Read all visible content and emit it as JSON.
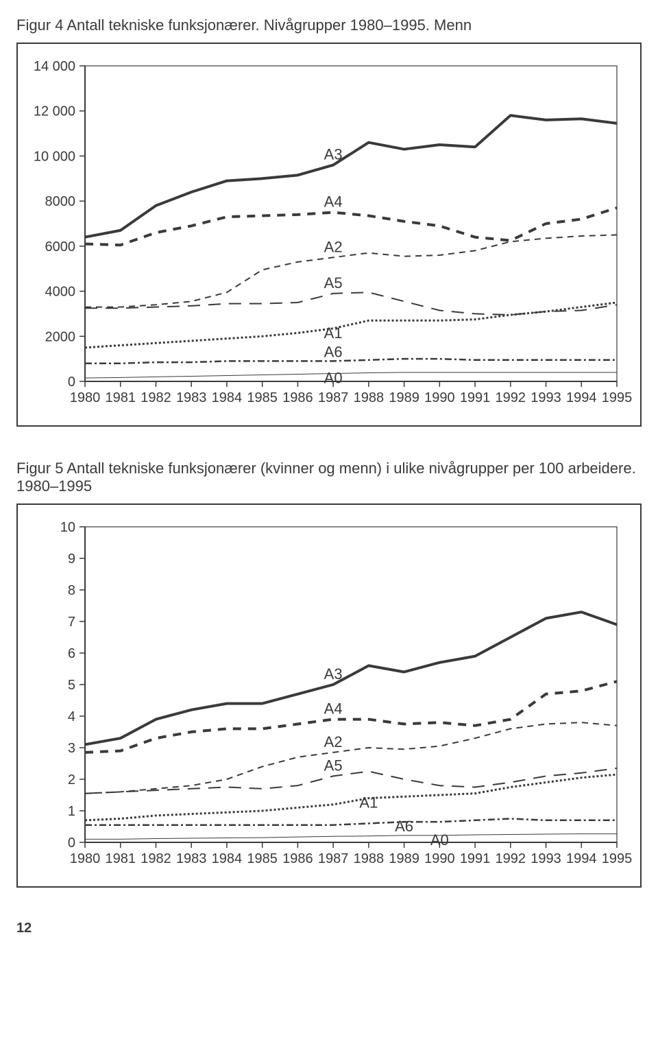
{
  "page_number": "12",
  "figure4": {
    "title": "Figur 4 Antall tekniske funksjonærer. Nivågrupper 1980–1995. Menn",
    "type": "line",
    "x_categories": [
      "1980",
      "1981",
      "1982",
      "1983",
      "1984",
      "1985",
      "1986",
      "1987",
      "1988",
      "1989",
      "1990",
      "1991",
      "1992",
      "1993",
      "1994",
      "1995"
    ],
    "y_ticks": [
      "0",
      "2000",
      "4000",
      "6000",
      "8000",
      "10 000",
      "12 000",
      "14 000"
    ],
    "ylim": [
      0,
      14000
    ],
    "background_color": "#ffffff",
    "axis_color": "#3a3a3a",
    "tick_fontsize": 20,
    "label_fontsize": 22,
    "line_width_heavy": 4,
    "line_width_light": 1.5,
    "series": {
      "A3": {
        "label": "A3",
        "color": "#3a3a3a",
        "dash": "none",
        "width": 4,
        "values": [
          6400,
          6700,
          7800,
          8400,
          8900,
          9000,
          9150,
          9600,
          10600,
          10300,
          10500,
          10400,
          11800,
          11600,
          11650,
          11450
        ]
      },
      "A4": {
        "label": "A4",
        "color": "#3a3a3a",
        "dash": "12 10",
        "width": 4,
        "values": [
          6100,
          6050,
          6600,
          6900,
          7300,
          7350,
          7400,
          7500,
          7350,
          7100,
          6900,
          6400,
          6250,
          7000,
          7200,
          7700
        ]
      },
      "A2": {
        "label": "A2",
        "color": "#3a3a3a",
        "dash": "9 7",
        "width": 2,
        "values": [
          3300,
          3300,
          3400,
          3550,
          3950,
          4950,
          5300,
          5500,
          5700,
          5550,
          5600,
          5800,
          6200,
          6350,
          6450,
          6500
        ]
      },
      "A5": {
        "label": "A5",
        "color": "#3a3a3a",
        "dash": "18 12",
        "width": 2,
        "values": [
          3250,
          3250,
          3300,
          3350,
          3450,
          3450,
          3500,
          3900,
          3950,
          3550,
          3150,
          3000,
          2950,
          3100,
          3150,
          3400
        ]
      },
      "A1": {
        "label": "A1",
        "color": "#3a3a3a",
        "dash": "3 3",
        "width": 3,
        "values": [
          1500,
          1600,
          1700,
          1800,
          1900,
          2000,
          2150,
          2350,
          2700,
          2700,
          2700,
          2750,
          2950,
          3100,
          3300,
          3500
        ]
      },
      "A6": {
        "label": "A6",
        "color": "#3a3a3a",
        "dash": "10 4 3 4",
        "width": 2.5,
        "values": [
          800,
          800,
          850,
          850,
          900,
          900,
          900,
          900,
          950,
          1000,
          1000,
          950,
          950,
          950,
          950,
          950
        ]
      },
      "A0": {
        "label": "A0",
        "color": "#3a3a3a",
        "dash": "none",
        "width": 1,
        "values": [
          150,
          170,
          200,
          230,
          260,
          290,
          320,
          350,
          380,
          400,
          400,
          400,
          400,
          400,
          400,
          400
        ]
      }
    },
    "inline_labels": [
      {
        "key": "A3",
        "x": 7,
        "dy": -8
      },
      {
        "key": "A4",
        "x": 7,
        "dy": -8
      },
      {
        "key": "A2",
        "x": 7,
        "dy": -8
      },
      {
        "key": "A5",
        "x": 7,
        "dy": -8
      },
      {
        "key": "A1",
        "x": 7,
        "dy": 14
      },
      {
        "key": "A6",
        "x": 7,
        "dy": -6
      },
      {
        "key": "A0",
        "x": 7,
        "dy": 14
      }
    ]
  },
  "figure5": {
    "title": "Figur 5 Antall tekniske funksjonærer (kvinner og menn) i ulike nivågrupper per 100 arbeidere. 1980–1995",
    "type": "line",
    "x_categories": [
      "1980",
      "1981",
      "1982",
      "1983",
      "1984",
      "1985",
      "1986",
      "1987",
      "1988",
      "1989",
      "1990",
      "1991",
      "1992",
      "1993",
      "1994",
      "1995"
    ],
    "y_ticks": [
      "0",
      "1",
      "2",
      "3",
      "4",
      "5",
      "6",
      "7",
      "8",
      "9",
      "10"
    ],
    "ylim": [
      0,
      10
    ],
    "background_color": "#ffffff",
    "axis_color": "#3a3a3a",
    "tick_fontsize": 20,
    "label_fontsize": 22,
    "line_width_heavy": 4,
    "line_width_light": 1.5,
    "series": {
      "A3": {
        "label": "A3",
        "color": "#3a3a3a",
        "dash": "none",
        "width": 4,
        "values": [
          3.1,
          3.3,
          3.9,
          4.2,
          4.4,
          4.4,
          4.7,
          5.0,
          5.6,
          5.4,
          5.7,
          5.9,
          6.5,
          7.1,
          7.3,
          6.9
        ]
      },
      "A4": {
        "label": "A4",
        "color": "#3a3a3a",
        "dash": "12 10",
        "width": 4,
        "values": [
          2.85,
          2.9,
          3.3,
          3.5,
          3.6,
          3.6,
          3.75,
          3.9,
          3.9,
          3.75,
          3.8,
          3.7,
          3.9,
          4.7,
          4.8,
          5.1
        ]
      },
      "A2": {
        "label": "A2",
        "color": "#3a3a3a",
        "dash": "9 7",
        "width": 2,
        "values": [
          1.55,
          1.6,
          1.7,
          1.8,
          2.0,
          2.4,
          2.7,
          2.85,
          3.0,
          2.95,
          3.05,
          3.3,
          3.6,
          3.75,
          3.8,
          3.7
        ]
      },
      "A5": {
        "label": "A5",
        "color": "#3a3a3a",
        "dash": "18 12",
        "width": 2,
        "values": [
          1.55,
          1.6,
          1.65,
          1.7,
          1.75,
          1.7,
          1.8,
          2.1,
          2.25,
          2.0,
          1.8,
          1.75,
          1.9,
          2.1,
          2.2,
          2.35
        ]
      },
      "A1": {
        "label": "A1",
        "color": "#3a3a3a",
        "dash": "3 3",
        "width": 3,
        "values": [
          0.7,
          0.75,
          0.85,
          0.9,
          0.95,
          1.0,
          1.1,
          1.2,
          1.4,
          1.45,
          1.5,
          1.55,
          1.75,
          1.9,
          2.05,
          2.15
        ]
      },
      "A6": {
        "label": "A6",
        "color": "#3a3a3a",
        "dash": "10 4 3 4",
        "width": 2.5,
        "values": [
          0.55,
          0.55,
          0.55,
          0.55,
          0.55,
          0.55,
          0.55,
          0.55,
          0.6,
          0.65,
          0.65,
          0.7,
          0.75,
          0.7,
          0.7,
          0.7
        ]
      },
      "A0": {
        "label": "A0",
        "color": "#3a3a3a",
        "dash": "none",
        "width": 1,
        "values": [
          0.1,
          0.1,
          0.12,
          0.13,
          0.14,
          0.15,
          0.17,
          0.19,
          0.2,
          0.22,
          0.22,
          0.24,
          0.25,
          0.26,
          0.27,
          0.27
        ]
      }
    },
    "inline_labels": [
      {
        "key": "A3",
        "x": 7,
        "dy": -8
      },
      {
        "key": "A4",
        "x": 7,
        "dy": -8
      },
      {
        "key": "A2",
        "x": 7,
        "dy": -8
      },
      {
        "key": "A5",
        "x": 7,
        "dy": -8
      },
      {
        "key": "A1",
        "x": 8,
        "dy": 14
      },
      {
        "key": "A6",
        "x": 9,
        "dy": 14
      },
      {
        "key": "A0",
        "x": 10,
        "dy": 14
      }
    ]
  }
}
